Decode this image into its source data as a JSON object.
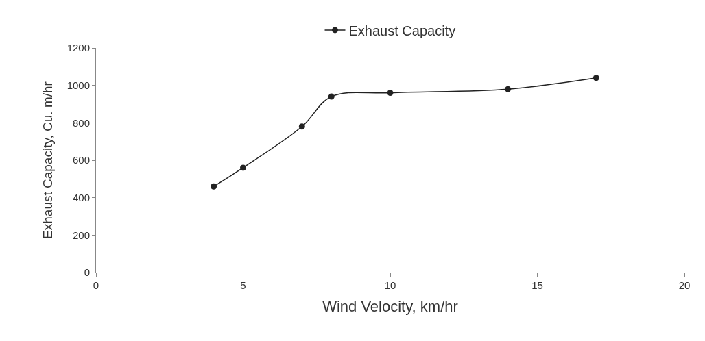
{
  "chart_data": {
    "type": "line",
    "xlabel": "Wind Velocity, km/hr",
    "ylabel": "Exhaust Capacity, Cu. m/hr",
    "x": [
      4,
      5,
      7,
      8,
      10,
      14,
      17
    ],
    "series": [
      {
        "name": "Exhaust Capacity",
        "color": "#222222",
        "values": [
          460,
          560,
          780,
          940,
          960,
          980,
          1040
        ]
      }
    ],
    "xlim": [
      0,
      20
    ],
    "xticks": [
      0,
      5,
      10,
      15,
      20
    ],
    "ylim": [
      0,
      1200
    ],
    "yticks": [
      0,
      200,
      400,
      600,
      800,
      1000,
      1200
    ],
    "legend": "top",
    "marker": "circle",
    "line_style": "solid"
  }
}
